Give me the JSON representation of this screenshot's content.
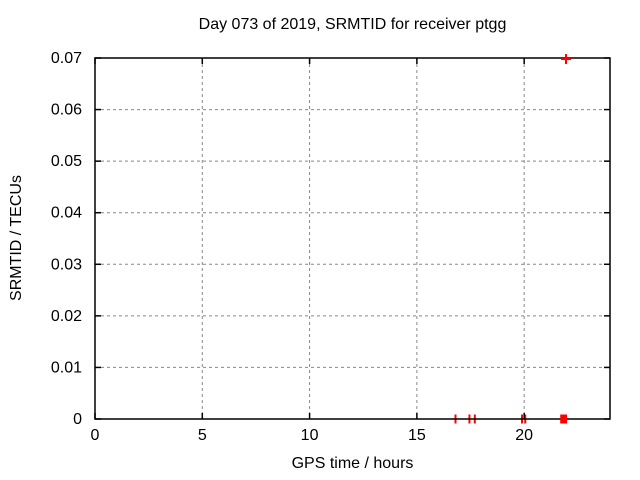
{
  "chart_data": {
    "type": "scatter",
    "title": "Day 073 of 2019, SRMTID for receiver ptgg",
    "xlabel": "GPS time / hours",
    "ylabel": "SRMTID / TECUs",
    "xlim": [
      0,
      24
    ],
    "ylim": [
      0,
      0.07
    ],
    "xticks": [
      {
        "value": 0,
        "label": "0"
      },
      {
        "value": 5,
        "label": "5"
      },
      {
        "value": 10,
        "label": "10"
      },
      {
        "value": 15,
        "label": "15"
      },
      {
        "value": 20,
        "label": "20"
      }
    ],
    "yticks": [
      {
        "value": 0,
        "label": "0"
      },
      {
        "value": 0.01,
        "label": "0.01"
      },
      {
        "value": 0.02,
        "label": "0.02"
      },
      {
        "value": 0.03,
        "label": "0.03"
      },
      {
        "value": 0.04,
        "label": "0.04"
      },
      {
        "value": 0.05,
        "label": "0.05"
      },
      {
        "value": 0.06,
        "label": "0.06"
      },
      {
        "value": 0.07,
        "label": "0.07"
      }
    ],
    "grid": true,
    "grid_style": "dashed",
    "legend": false,
    "colors": {
      "series": "#ff0000",
      "grid": "#888888",
      "axis": "#000000",
      "text": "#000000",
      "background": "#ffffff"
    },
    "series": [
      {
        "name": "SRMTID",
        "color": "#ff0000",
        "marker": "plus",
        "points": [
          {
            "x": 16.8,
            "y": 0,
            "marker": "vbar"
          },
          {
            "x": 17.45,
            "y": 0,
            "marker": "vbar"
          },
          {
            "x": 17.7,
            "y": 0,
            "marker": "vbar"
          },
          {
            "x": 19.9,
            "y": 0,
            "marker": "vbar"
          },
          {
            "x": 20.05,
            "y": 0,
            "marker": "vbar"
          },
          {
            "x": 21.85,
            "y": 0,
            "marker": "square",
            "x_span": [
              21.68,
              22.0
            ]
          },
          {
            "x": 21.95,
            "y": 0.0698,
            "marker": "plus"
          }
        ]
      }
    ]
  }
}
